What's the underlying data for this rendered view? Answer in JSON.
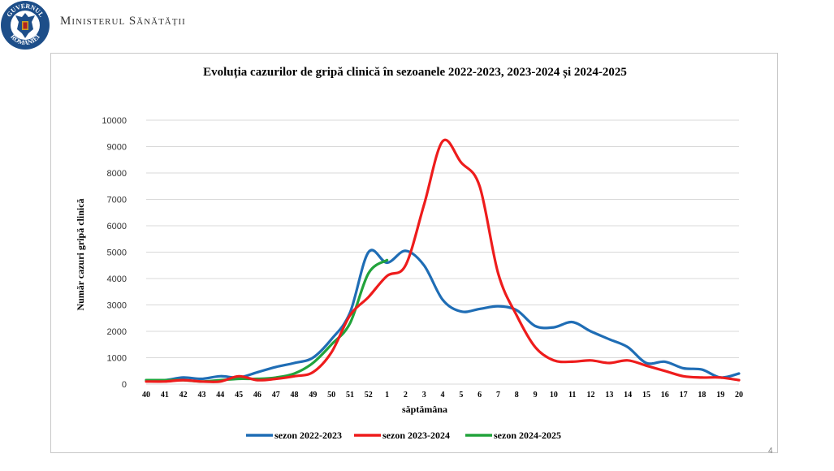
{
  "header": {
    "ministry_name": "Ministerul Sănătății",
    "logo_text_top": "GUVERNUL",
    "logo_text_bottom": "ROMÂNIEI"
  },
  "page_number": "4",
  "colors": {
    "series_2022": "#1f6db5",
    "series_2023": "#ee1c1c",
    "series_2024": "#22a33b",
    "gridline": "#d9d9d9",
    "logo_blue": "#1d4e89"
  },
  "chart_data": {
    "type": "line",
    "title": "Evoluția cazurilor de gripă clinică în sezoanele 2022-2023, 2023-2024 și 2024-2025",
    "xlabel": "săptămâna",
    "ylabel": "Număr cazuri gripă clinică",
    "ylim": [
      0,
      10000
    ],
    "yticks": [
      "0",
      "1000",
      "2000",
      "3000",
      "4000",
      "5000",
      "6000",
      "7000",
      "8000",
      "9000",
      "10000"
    ],
    "categories": [
      "40",
      "41",
      "42",
      "43",
      "44",
      "45",
      "46",
      "47",
      "48",
      "49",
      "50",
      "51",
      "52",
      "1",
      "2",
      "3",
      "4",
      "5",
      "6",
      "7",
      "8",
      "9",
      "10",
      "11",
      "12",
      "13",
      "14",
      "15",
      "16",
      "17",
      "18",
      "19",
      "20"
    ],
    "legend_position": "bottom",
    "grid": true,
    "series": [
      {
        "name": "sezon 2022-2023",
        "color": "#1f6db5",
        "values": [
          150,
          150,
          250,
          200,
          300,
          250,
          450,
          650,
          800,
          1000,
          1700,
          2700,
          5000,
          4600,
          5050,
          4500,
          3200,
          2750,
          2850,
          2950,
          2800,
          2200,
          2150,
          2350,
          2000,
          1700,
          1400,
          800,
          850,
          600,
          550,
          250,
          400
        ]
      },
      {
        "name": "sezon 2023-2024",
        "color": "#ee1c1c",
        "values": [
          100,
          100,
          150,
          100,
          100,
          300,
          150,
          200,
          300,
          450,
          1200,
          2600,
          3300,
          4100,
          4500,
          6800,
          9200,
          8400,
          7500,
          4200,
          2600,
          1400,
          900,
          850,
          900,
          800,
          900,
          700,
          500,
          300,
          250,
          250,
          150
        ]
      },
      {
        "name": "sezon 2024-2025",
        "color": "#22a33b",
        "values": [
          150,
          150,
          150,
          100,
          150,
          200,
          200,
          250,
          400,
          800,
          1500,
          2300,
          4200,
          4700,
          null,
          null,
          null,
          null,
          null,
          null,
          null,
          null,
          null,
          null,
          null,
          null,
          null,
          null,
          null,
          null,
          null,
          null,
          null
        ]
      }
    ]
  }
}
